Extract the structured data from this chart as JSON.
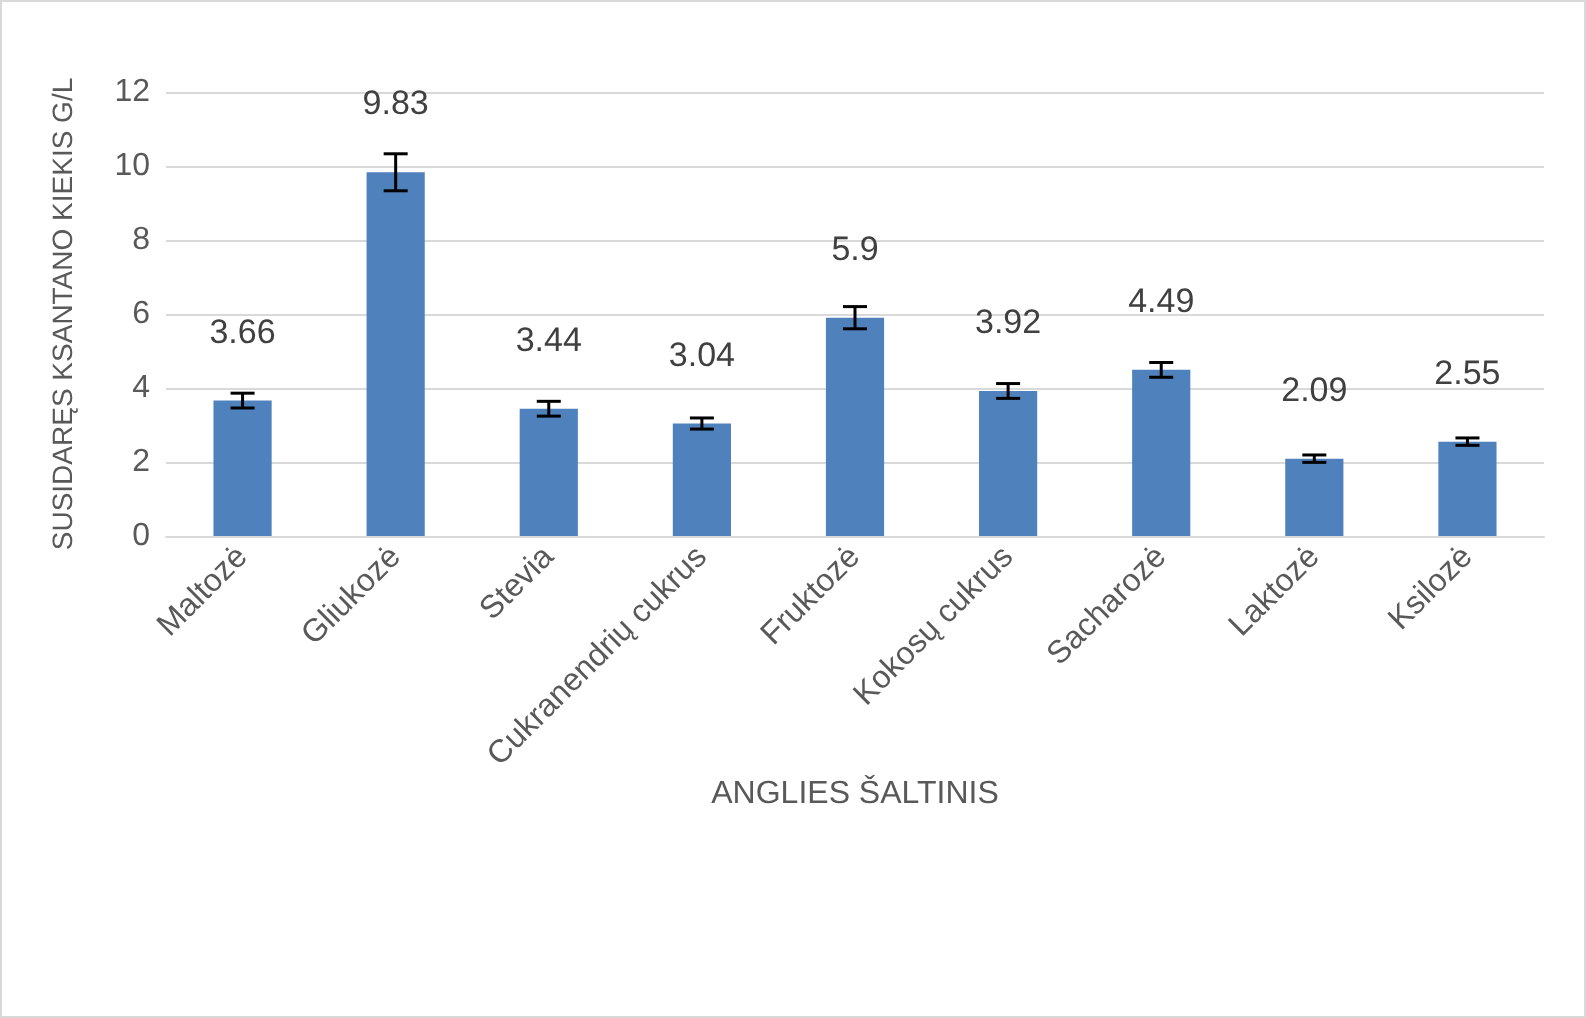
{
  "chart_data": {
    "type": "bar",
    "xlabel": "ANGLIES ŠALTINIS",
    "ylabel": "SUSIDARĘS KSANTANO KIEKIS G/L",
    "categories": [
      "Maltozė",
      "Gliukozė",
      "Stevia",
      "Cukranendrių cukrus",
      "Fruktozė",
      "Kokosų cukrus",
      "Sacharozė",
      "Laktozė",
      "Ksilozė"
    ],
    "values": [
      3.66,
      9.83,
      3.44,
      3.04,
      5.9,
      3.92,
      4.49,
      2.09,
      2.55
    ],
    "errors": [
      0.2,
      0.5,
      0.2,
      0.15,
      0.3,
      0.2,
      0.2,
      0.1,
      0.1
    ],
    "color": "#4f81bd",
    "ylim": [
      0,
      12
    ],
    "yticks": [
      0,
      2,
      4,
      6,
      8,
      10,
      12
    ],
    "grid": "y",
    "data_labels": true
  }
}
